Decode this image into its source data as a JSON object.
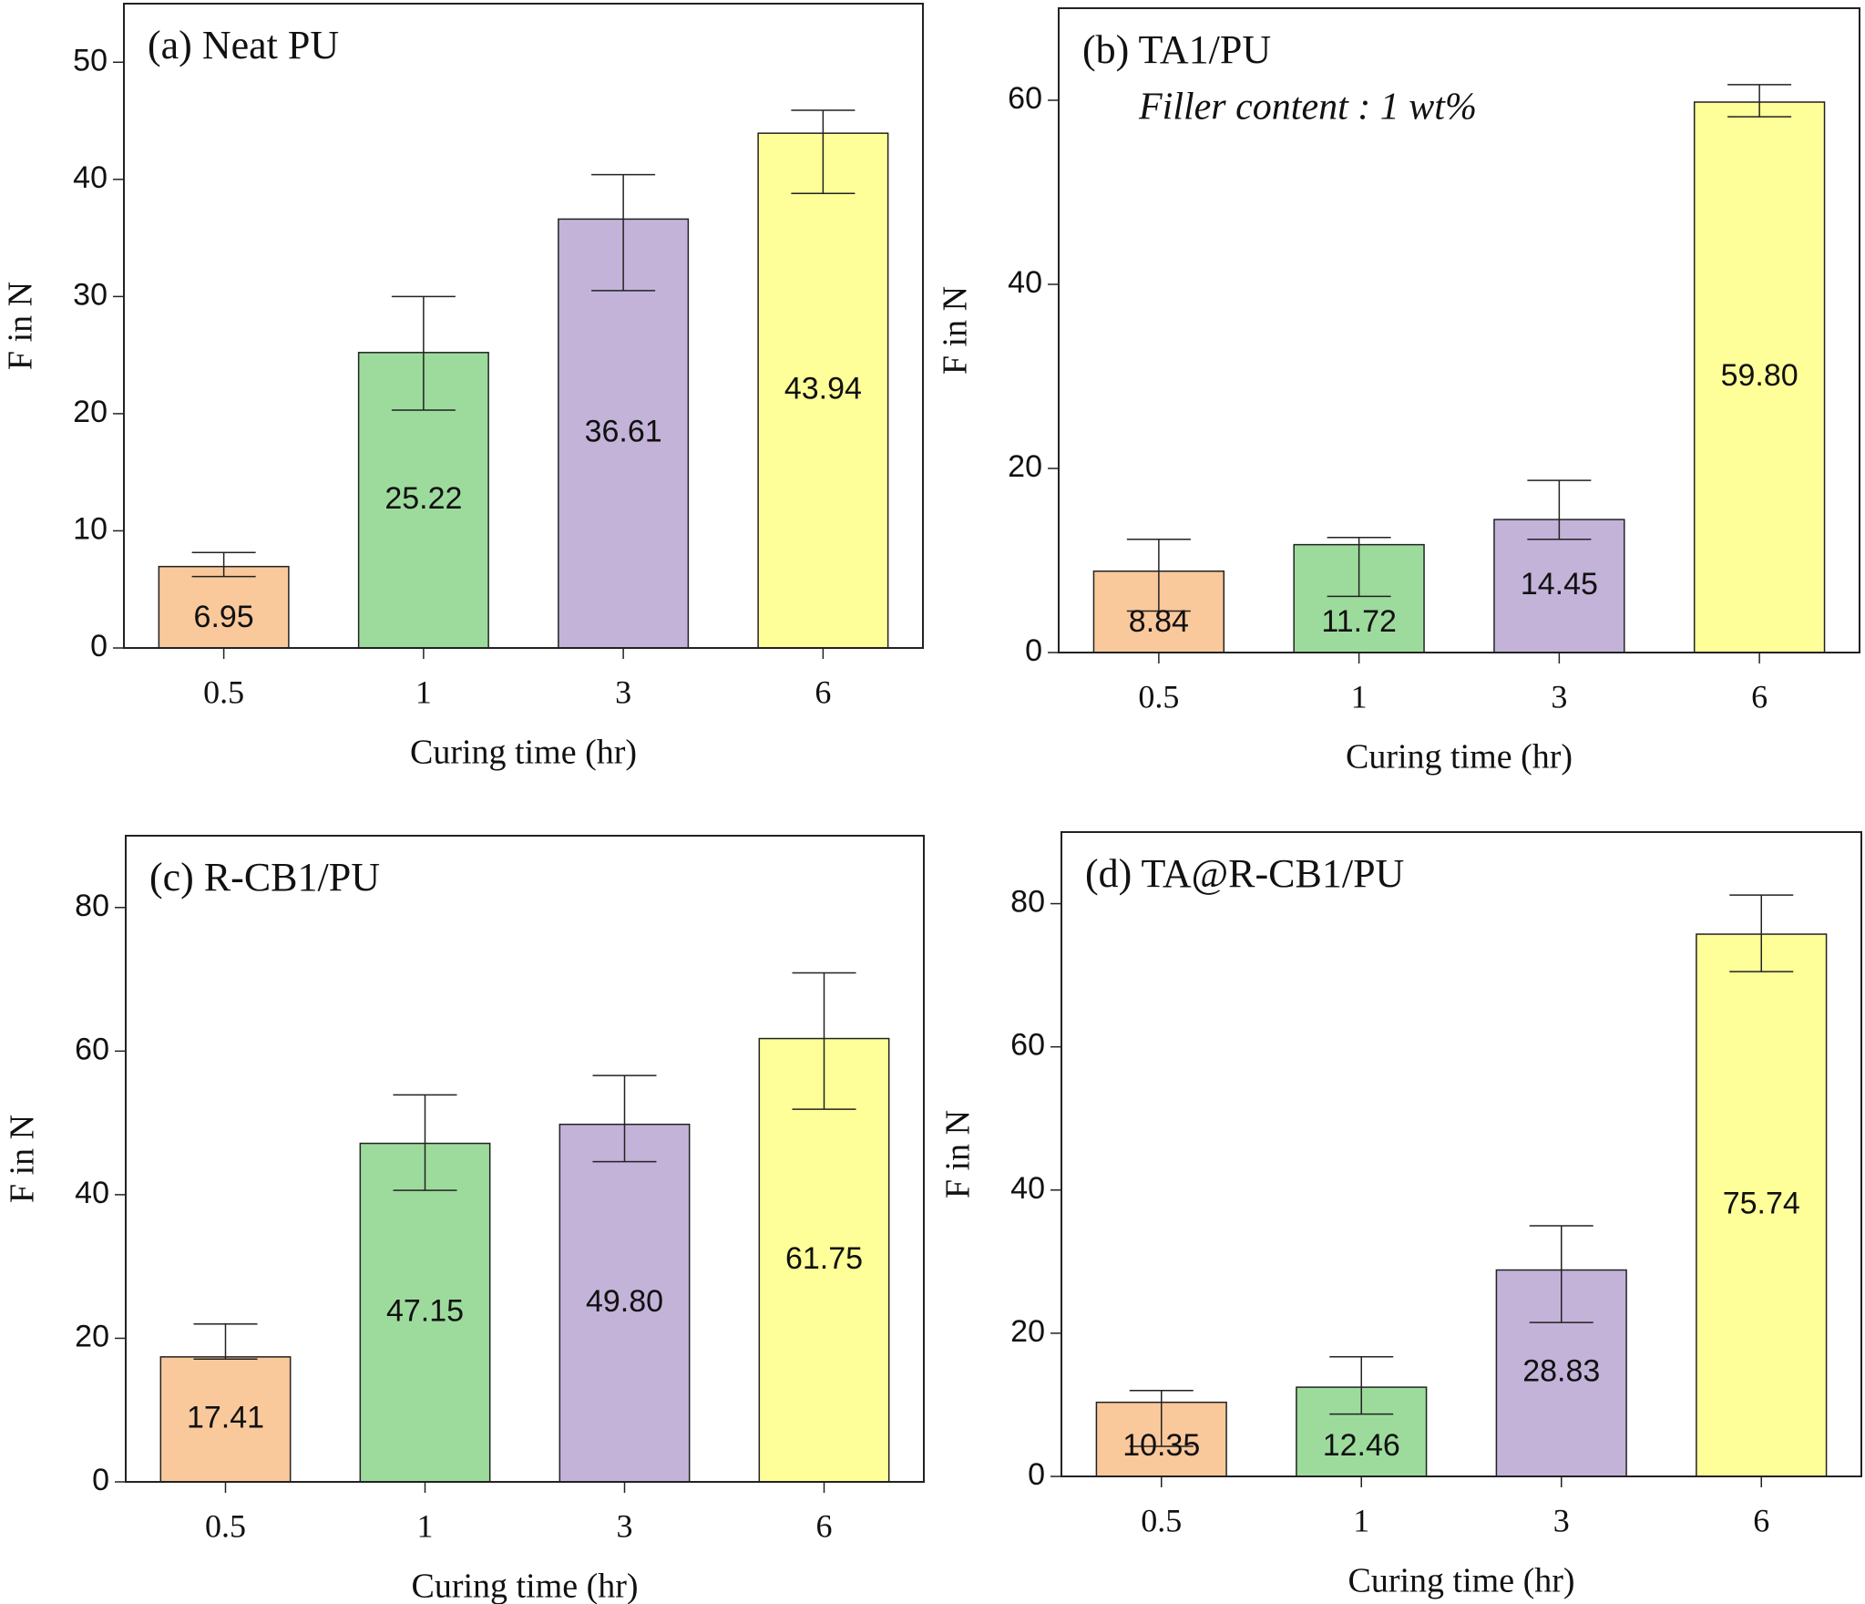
{
  "chart_data": [
    {
      "type": "bar",
      "title": "(a) Neat PU",
      "x_label": "Curing time (hr)",
      "y_label": "F in N",
      "categories": [
        "0.5",
        "1",
        "3",
        "6"
      ],
      "values": [
        6.95,
        25.22,
        36.61,
        43.94
      ],
      "value_labels": [
        "6.95",
        "25.22",
        "36.61",
        "43.94"
      ],
      "error_lower": [
        6.1,
        20.3,
        30.5,
        38.8
      ],
      "error_upper": [
        8.15,
        30.0,
        40.4,
        45.9
      ],
      "colors": [
        "#f9c89b",
        "#9ddb9d",
        "#c3b3d9",
        "#ffff99"
      ],
      "ylim": [
        0,
        55
      ],
      "yticks": [
        0,
        10,
        20,
        30,
        40,
        50
      ]
    },
    {
      "type": "bar",
      "title": "(b) TA1/PU",
      "annotation": "Filler content : 1 wt%",
      "x_label": "Curing time (hr)",
      "y_label": "F in N",
      "categories": [
        "0.5",
        "1",
        "3",
        "6"
      ],
      "values": [
        8.84,
        11.72,
        14.45,
        59.8
      ],
      "value_labels": [
        "8.84",
        "11.72",
        "14.45",
        "59.80"
      ],
      "error_lower": [
        4.5,
        6.1,
        12.3,
        58.2
      ],
      "error_upper": [
        12.3,
        12.5,
        18.7,
        61.7
      ],
      "colors": [
        "#f9c89b",
        "#9ddb9d",
        "#c3b3d9",
        "#ffff99"
      ],
      "ylim": [
        0,
        70
      ],
      "yticks": [
        0,
        20,
        40,
        60
      ]
    },
    {
      "type": "bar",
      "title": "(c) R-CB1/PU",
      "x_label": "Curing time (hr)",
      "y_label": "F in N",
      "categories": [
        "0.5",
        "1",
        "3",
        "6"
      ],
      "values": [
        17.41,
        47.15,
        49.8,
        61.75
      ],
      "value_labels": [
        "17.41",
        "47.15",
        "49.80",
        "61.75"
      ],
      "error_lower": [
        17.1,
        40.6,
        44.6,
        51.9
      ],
      "error_upper": [
        22.0,
        53.9,
        56.6,
        70.9
      ],
      "colors": [
        "#f9c89b",
        "#9ddb9d",
        "#c3b3d9",
        "#ffff99"
      ],
      "ylim": [
        0,
        90
      ],
      "yticks": [
        0,
        20,
        40,
        60,
        80
      ]
    },
    {
      "type": "bar",
      "title": "(d) TA@R-CB1/PU",
      "x_label": "Curing time (hr)",
      "y_label": "F in N",
      "categories": [
        "0.5",
        "1",
        "3",
        "6"
      ],
      "values": [
        10.35,
        12.46,
        28.83,
        75.74
      ],
      "value_labels": [
        "10.35",
        "12.46",
        "28.83",
        "75.74"
      ],
      "error_lower": [
        4.2,
        8.7,
        21.5,
        70.5
      ],
      "error_upper": [
        12.0,
        16.7,
        35.0,
        81.2
      ],
      "colors": [
        "#f9c89b",
        "#9ddb9d",
        "#c3b3d9",
        "#ffff99"
      ],
      "ylim": [
        0,
        90
      ],
      "yticks": [
        0,
        20,
        40,
        60,
        80
      ]
    }
  ]
}
